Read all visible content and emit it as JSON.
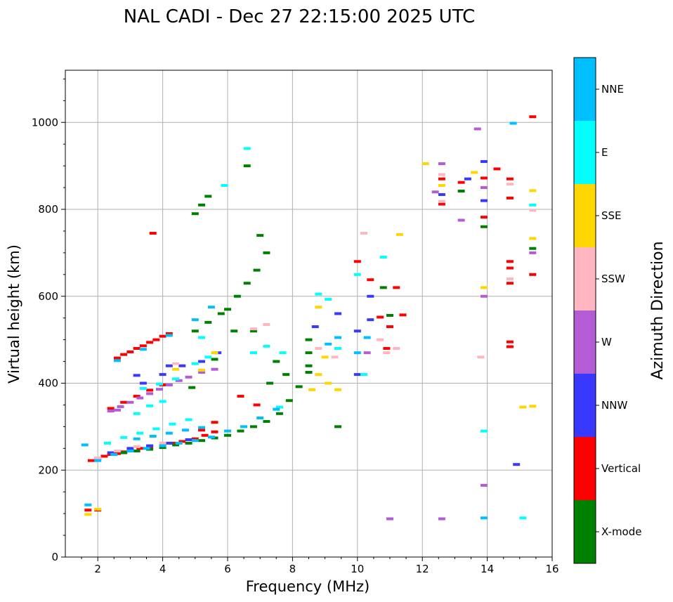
{
  "chart_data": {
    "type": "scatter",
    "title": "NAL CADI - Dec 27 22:15:00 2025 UTC",
    "xlabel": "Frequency (MHz)",
    "ylabel": "Virtual height (km)",
    "xlim": [
      1,
      16
    ],
    "ylim": [
      0,
      1120
    ],
    "xticks": [
      2,
      4,
      6,
      8,
      10,
      12,
      14,
      16
    ],
    "xtick_labels": [
      "2",
      "4",
      "6",
      "8",
      "10",
      "12",
      "14",
      "16"
    ],
    "yticks": [
      0,
      200,
      400,
      600,
      800,
      1000
    ],
    "ytick_labels": [
      "0",
      "200",
      "400",
      "600",
      "800",
      "1000"
    ],
    "grid": true,
    "colorbar": {
      "title": "Azimuth Direction",
      "categories": [
        {
          "name": "X-mode",
          "color": "#008000"
        },
        {
          "name": "Vertical",
          "color": "#ff0000"
        },
        {
          "name": "NNW",
          "color": "#3838ff"
        },
        {
          "name": "W",
          "color": "#b45cd6"
        },
        {
          "name": "SSW",
          "color": "#ffb6c1"
        },
        {
          "name": "SSE",
          "color": "#ffd700"
        },
        {
          "name": "E",
          "color": "#00ffff"
        },
        {
          "name": "NNE",
          "color": "#00bfff"
        }
      ]
    },
    "series": [
      {
        "name": "Vertical",
        "points": [
          [
            1.8,
            222
          ],
          [
            2.0,
            226
          ],
          [
            2.2,
            232
          ],
          [
            2.4,
            236
          ],
          [
            2.6,
            238
          ],
          [
            2.8,
            242
          ],
          [
            3.0,
            246
          ],
          [
            3.3,
            250
          ],
          [
            3.6,
            254
          ],
          [
            4.0,
            258
          ],
          [
            4.3,
            262
          ],
          [
            4.6,
            266
          ],
          [
            5.0,
            272
          ],
          [
            5.3,
            280
          ],
          [
            5.6,
            288
          ],
          [
            2.6,
            458
          ],
          [
            2.8,
            466
          ],
          [
            3.0,
            472
          ],
          [
            3.2,
            480
          ],
          [
            3.4,
            486
          ],
          [
            3.6,
            494
          ],
          [
            3.8,
            500
          ],
          [
            4.0,
            508
          ],
          [
            4.2,
            514
          ],
          [
            2.4,
            342
          ],
          [
            2.8,
            356
          ],
          [
            3.2,
            370
          ],
          [
            3.6,
            384
          ],
          [
            4.0,
            396
          ],
          [
            5.2,
            292
          ],
          [
            5.6,
            310
          ],
          [
            6.4,
            370
          ],
          [
            6.9,
            350
          ],
          [
            3.7,
            745
          ],
          [
            1.7,
            108
          ],
          [
            2.0,
            108
          ],
          [
            10.0,
            680
          ],
          [
            10.4,
            638
          ],
          [
            10.7,
            552
          ],
          [
            10.9,
            480
          ],
          [
            11.0,
            530
          ],
          [
            11.2,
            620
          ],
          [
            11.4,
            557
          ],
          [
            12.6,
            870
          ],
          [
            12.6,
            812
          ],
          [
            13.2,
            862
          ],
          [
            13.9,
            872
          ],
          [
            13.9,
            782
          ],
          [
            14.3,
            893
          ],
          [
            14.7,
            870
          ],
          [
            14.7,
            826
          ],
          [
            14.7,
            680
          ],
          [
            14.7,
            665
          ],
          [
            14.7,
            630
          ],
          [
            14.7,
            495
          ],
          [
            14.7,
            484
          ],
          [
            15.4,
            1013
          ],
          [
            15.4,
            650
          ]
        ]
      },
      {
        "name": "X-mode",
        "points": [
          [
            2.8,
            240
          ],
          [
            3.2,
            244
          ],
          [
            3.6,
            248
          ],
          [
            4.0,
            252
          ],
          [
            4.4,
            258
          ],
          [
            4.8,
            262
          ],
          [
            5.2,
            268
          ],
          [
            5.6,
            274
          ],
          [
            6.0,
            280
          ],
          [
            6.4,
            290
          ],
          [
            6.8,
            300
          ],
          [
            7.2,
            312
          ],
          [
            7.6,
            330
          ],
          [
            7.9,
            360
          ],
          [
            8.2,
            392
          ],
          [
            8.5,
            440
          ],
          [
            8.5,
            470
          ],
          [
            8.5,
            500
          ],
          [
            8.5,
            425
          ],
          [
            6.0,
            570
          ],
          [
            6.3,
            600
          ],
          [
            6.6,
            630
          ],
          [
            6.9,
            660
          ],
          [
            7.2,
            700
          ],
          [
            7.0,
            740
          ],
          [
            6.2,
            520
          ],
          [
            6.8,
            520
          ],
          [
            7.5,
            450
          ],
          [
            7.3,
            400
          ],
          [
            7.8,
            420
          ],
          [
            5.2,
            810
          ],
          [
            5.0,
            790
          ],
          [
            5.4,
            830
          ],
          [
            6.6,
            900
          ],
          [
            5.4,
            540
          ],
          [
            5.0,
            520
          ],
          [
            5.8,
            560
          ],
          [
            9.4,
            300
          ],
          [
            10.8,
            620
          ],
          [
            11.0,
            556
          ],
          [
            13.2,
            842
          ],
          [
            13.9,
            760
          ],
          [
            15.4,
            710
          ],
          [
            4.9,
            390
          ],
          [
            5.6,
            455
          ]
        ]
      },
      {
        "name": "NNW",
        "points": [
          [
            2.4,
            240
          ],
          [
            3.0,
            250
          ],
          [
            3.6,
            256
          ],
          [
            4.2,
            262
          ],
          [
            4.8,
            270
          ],
          [
            3.4,
            400
          ],
          [
            4.0,
            420
          ],
          [
            4.6,
            440
          ],
          [
            5.2,
            450
          ],
          [
            5.7,
            470
          ],
          [
            8.7,
            530
          ],
          [
            9.4,
            560
          ],
          [
            10.0,
            520
          ],
          [
            10.4,
            546
          ],
          [
            10.0,
            420
          ],
          [
            10.4,
            600
          ],
          [
            13.9,
            910
          ],
          [
            13.9,
            820
          ],
          [
            13.4,
            870
          ],
          [
            14.9,
            213
          ],
          [
            12.6,
            834
          ],
          [
            3.2,
            418
          ],
          [
            4.2,
            440
          ]
        ]
      },
      {
        "name": "W",
        "points": [
          [
            2.4,
            336
          ],
          [
            2.7,
            346
          ],
          [
            3.0,
            356
          ],
          [
            3.3,
            366
          ],
          [
            3.6,
            376
          ],
          [
            3.9,
            386
          ],
          [
            4.2,
            396
          ],
          [
            4.5,
            406
          ],
          [
            4.8,
            414
          ],
          [
            5.2,
            425
          ],
          [
            5.6,
            432
          ],
          [
            12.4,
            840
          ],
          [
            12.6,
            905
          ],
          [
            13.2,
            775
          ],
          [
            13.7,
            985
          ],
          [
            13.9,
            850
          ],
          [
            13.9,
            600
          ],
          [
            13.9,
            165
          ],
          [
            12.6,
            88
          ],
          [
            11.0,
            88
          ],
          [
            15.4,
            700
          ],
          [
            2.6,
            338
          ],
          [
            10.3,
            470
          ]
        ]
      },
      {
        "name": "SSW",
        "points": [
          [
            2.0,
            228
          ],
          [
            2.6,
            244
          ],
          [
            3.2,
            254
          ],
          [
            4.0,
            262
          ],
          [
            6.8,
            525
          ],
          [
            7.2,
            535
          ],
          [
            8.8,
            480
          ],
          [
            9.3,
            460
          ],
          [
            10.7,
            500
          ],
          [
            10.9,
            470
          ],
          [
            11.2,
            480
          ],
          [
            10.2,
            745
          ],
          [
            12.6,
            880
          ],
          [
            12.6,
            818
          ],
          [
            13.8,
            460
          ],
          [
            14.7,
            640
          ],
          [
            14.7,
            858
          ],
          [
            15.4,
            798
          ],
          [
            4.4,
            445
          ]
        ]
      },
      {
        "name": "SSE",
        "points": [
          [
            2.0,
            110
          ],
          [
            1.7,
            98
          ],
          [
            4.4,
            432
          ],
          [
            5.2,
            430
          ],
          [
            5.6,
            470
          ],
          [
            8.6,
            385
          ],
          [
            8.8,
            420
          ],
          [
            9.0,
            460
          ],
          [
            9.4,
            385
          ],
          [
            12.1,
            905
          ],
          [
            12.6,
            855
          ],
          [
            13.6,
            885
          ],
          [
            13.9,
            620
          ],
          [
            15.4,
            843
          ],
          [
            15.4,
            733
          ],
          [
            15.4,
            347
          ],
          [
            15.1,
            345
          ],
          [
            11.3,
            742
          ],
          [
            8.8,
            575
          ],
          [
            9.1,
            400
          ]
        ]
      },
      {
        "name": "E",
        "points": [
          [
            2.3,
            262
          ],
          [
            2.8,
            275
          ],
          [
            3.3,
            285
          ],
          [
            3.8,
            295
          ],
          [
            4.3,
            306
          ],
          [
            4.8,
            316
          ],
          [
            3.2,
            330
          ],
          [
            3.6,
            348
          ],
          [
            4.0,
            358
          ],
          [
            3.4,
            388
          ],
          [
            3.9,
            398
          ],
          [
            4.4,
            410
          ],
          [
            5.0,
            445
          ],
          [
            5.4,
            460
          ],
          [
            6.8,
            470
          ],
          [
            7.2,
            485
          ],
          [
            7.7,
            470
          ],
          [
            9.1,
            593
          ],
          [
            9.4,
            480
          ],
          [
            10.0,
            650
          ],
          [
            10.8,
            690
          ],
          [
            10.2,
            420
          ],
          [
            13.9,
            290
          ],
          [
            15.1,
            90
          ],
          [
            15.4,
            810
          ],
          [
            6.6,
            940
          ],
          [
            5.9,
            855
          ],
          [
            5.2,
            505
          ],
          [
            8.8,
            605
          ],
          [
            7.6,
            345
          ]
        ]
      },
      {
        "name": "NNE",
        "points": [
          [
            2.0,
            222
          ],
          [
            2.5,
            236
          ],
          [
            3.0,
            244
          ],
          [
            3.5,
            250
          ],
          [
            4.0,
            256
          ],
          [
            4.5,
            262
          ],
          [
            5.0,
            268
          ],
          [
            5.5,
            276
          ],
          [
            6.0,
            290
          ],
          [
            6.5,
            300
          ],
          [
            7.0,
            320
          ],
          [
            7.5,
            340
          ],
          [
            3.2,
            272
          ],
          [
            3.7,
            278
          ],
          [
            4.2,
            285
          ],
          [
            4.7,
            292
          ],
          [
            5.2,
            298
          ],
          [
            2.6,
            452
          ],
          [
            3.4,
            478
          ],
          [
            4.2,
            510
          ],
          [
            5.0,
            546
          ],
          [
            5.5,
            575
          ],
          [
            1.7,
            120
          ],
          [
            1.6,
            258
          ],
          [
            13.9,
            90
          ],
          [
            14.8,
            998
          ],
          [
            9.4,
            505
          ],
          [
            9.1,
            490
          ],
          [
            10.0,
            470
          ],
          [
            10.3,
            505
          ]
        ]
      }
    ]
  }
}
